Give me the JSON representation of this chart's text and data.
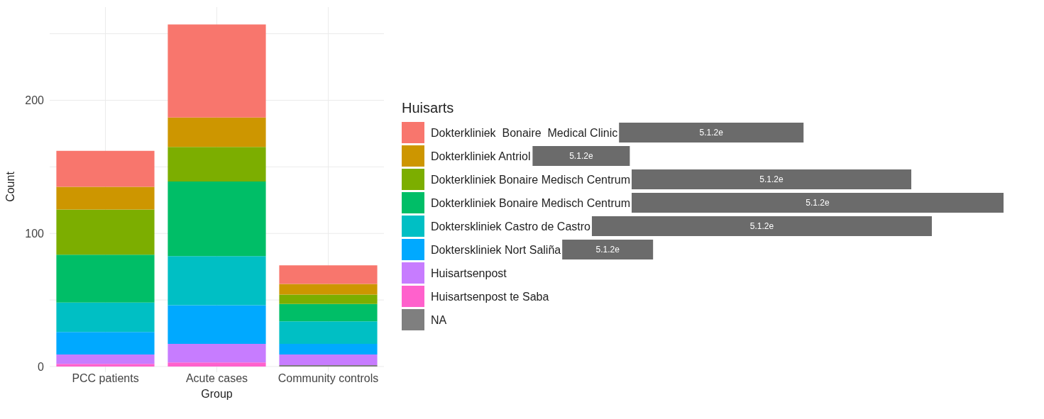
{
  "chart_data": {
    "type": "bar",
    "stacked": true,
    "xlabel": "Group",
    "ylabel": "Count",
    "legend_title": "Huisarts",
    "categories": [
      "PCC patients",
      "Acute cases",
      "Community controls"
    ],
    "series": [
      {
        "name": "NA",
        "color": "#7f7f7f",
        "values": [
          0,
          0,
          1
        ]
      },
      {
        "name": "Huisartsenpost te Saba",
        "color": "#ff61cc",
        "values": [
          2,
          3,
          0
        ]
      },
      {
        "name": "Huisartsenpost",
        "color": "#c77cff",
        "values": [
          7,
          14,
          8
        ]
      },
      {
        "name": "Dokterskliniek Nort Saliña",
        "color": "#00a9ff",
        "values": [
          17,
          29,
          8
        ]
      },
      {
        "name": "Dokterskliniek Castro de Castro",
        "color": "#00bfc4",
        "values": [
          22,
          37,
          17
        ]
      },
      {
        "name": "Dokterkliniek Bonaire Medisch Centrum",
        "color": "#00be67",
        "values": [
          36,
          56,
          13
        ]
      },
      {
        "name": "Dokterkliniek Bonaire Medisch Centrum",
        "color": "#7cae00",
        "values": [
          34,
          26,
          7
        ]
      },
      {
        "name": "Dokterkliniek Antriol",
        "color": "#cd9600",
        "values": [
          17,
          22,
          8
        ]
      },
      {
        "name": "Dokterkliniek  Bonaire  Medical Clinic",
        "color": "#f8766d",
        "values": [
          27,
          70,
          14
        ]
      }
    ],
    "ylim": [
      0,
      270
    ],
    "yticks": [
      0,
      {
        "value": 50,
        "label": null
      },
      100,
      {
        "value": 150,
        "label": null
      },
      200,
      {
        "value": 250,
        "label": null
      }
    ],
    "grid": true,
    "legend": "right",
    "annotations": [
      "5.1.2e",
      "5.1.2e",
      "5.1.2e",
      "5.1.2e",
      "5.1.2e",
      "5.1.2e"
    ]
  }
}
